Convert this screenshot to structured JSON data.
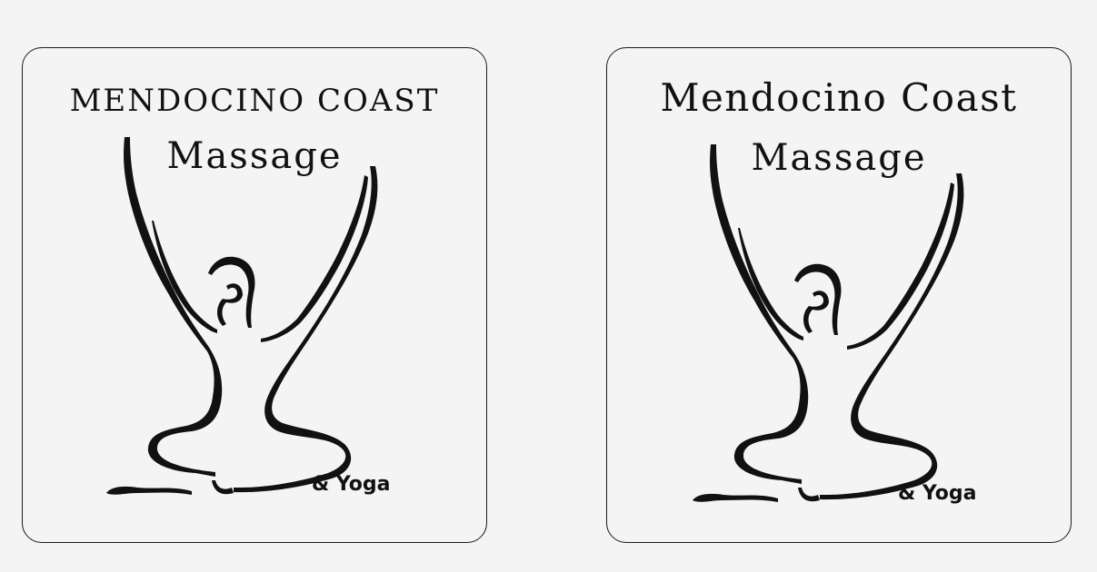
{
  "logos": [
    {
      "title": "MENDOCINO COAST",
      "subtitle": "Massage",
      "tagline": "& Yoga"
    },
    {
      "title": "Mendocino Coast",
      "subtitle": "Massage",
      "tagline": "& Yoga"
    }
  ],
  "colors": {
    "background": "#f4f4f4",
    "ink": "#111111",
    "border": "#1a1a1a"
  },
  "icons": [
    "yoga-figure-icon"
  ]
}
